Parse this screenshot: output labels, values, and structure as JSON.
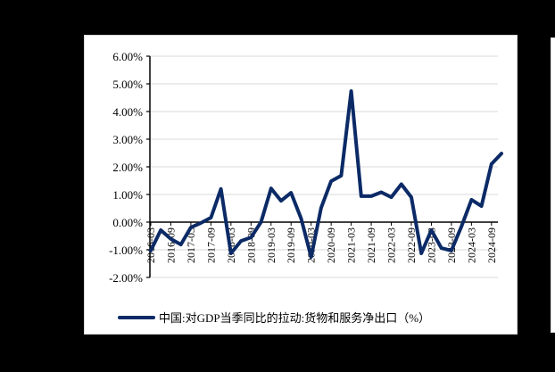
{
  "chart_data": {
    "type": "line",
    "title": "",
    "xlabel": "",
    "ylabel": "",
    "ylim": [
      -2.0,
      6.0
    ],
    "y_ticks": [
      "6.00%",
      "5.00%",
      "4.00%",
      "3.00%",
      "2.00%",
      "1.00%",
      "0.00%",
      "-1.00%",
      "-2.00%"
    ],
    "x_tick_labels": [
      "2016-03",
      "2016-09",
      "2017-03",
      "2017-09",
      "2018-03",
      "2018-09",
      "2019-03",
      "2019-09",
      "2020-03",
      "2020-09",
      "2021-03",
      "2021-09",
      "2022-03",
      "2022-09",
      "2023-03",
      "2023-09",
      "2024-03",
      "2024-09"
    ],
    "grid": "horizontal",
    "legend_position": "bottom",
    "x": [
      "2016-03",
      "2016-06",
      "2016-09",
      "2016-12",
      "2017-03",
      "2017-06",
      "2017-09",
      "2017-12",
      "2018-03",
      "2018-06",
      "2018-09",
      "2018-12",
      "2019-03",
      "2019-06",
      "2019-09",
      "2019-12",
      "2020-03",
      "2020-06",
      "2020-09",
      "2020-12",
      "2021-03",
      "2021-06",
      "2021-09",
      "2021-12",
      "2022-03",
      "2022-06",
      "2022-09",
      "2022-12",
      "2023-03",
      "2023-06",
      "2023-09",
      "2023-12",
      "2024-03",
      "2024-06",
      "2024-09",
      "2024-12"
    ],
    "series": [
      {
        "name": "中国:对GDP当季同比的拉动:货物和服务净出口（%）",
        "color": "#0b2a66",
        "values": [
          -1.03,
          -0.29,
          -0.61,
          -0.81,
          -0.19,
          -0.03,
          0.16,
          1.2,
          -1.13,
          -0.68,
          -0.55,
          0.0,
          1.22,
          0.77,
          1.06,
          0.13,
          -1.26,
          0.52,
          1.48,
          1.68,
          4.74,
          0.94,
          0.94,
          1.08,
          0.9,
          1.37,
          0.9,
          -1.13,
          -0.29,
          -0.94,
          -1.03,
          -0.16,
          0.81,
          0.58,
          2.1,
          2.48
        ]
      }
    ]
  },
  "legend": {
    "label": "中国:对GDP当季同比的拉动:货物和服务净出口（%）"
  }
}
